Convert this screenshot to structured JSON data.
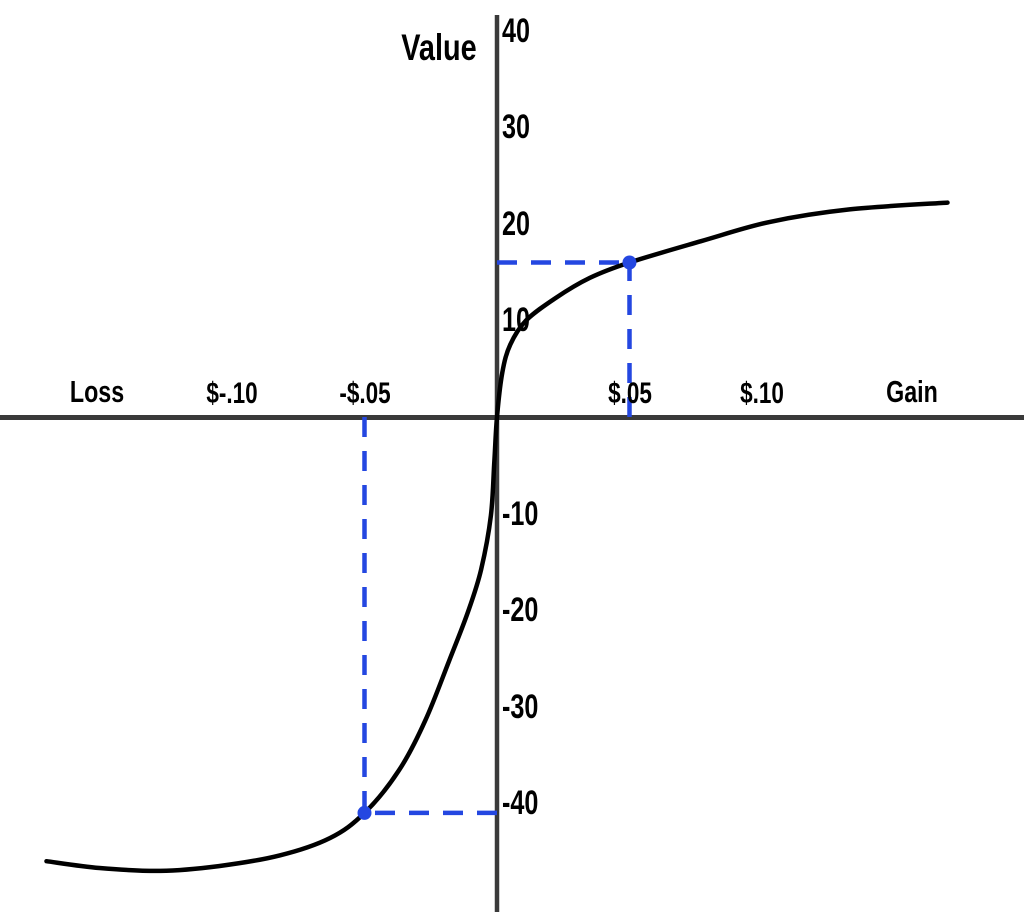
{
  "colors": {
    "background": "#ffffff",
    "curve": "#000000",
    "axis": "#3a3a3a",
    "guide_blue": "#2447e1",
    "label_text": "#000000"
  },
  "chart_data": {
    "type": "line",
    "ylabel": "Value",
    "xlabel_left": "Loss",
    "xlabel_right": "Gain",
    "xlim": [
      -0.19,
      0.2
    ],
    "ylim": [
      -52,
      43
    ],
    "grid": false,
    "legend": false,
    "x_ticks": [
      {
        "value": -0.1,
        "label": "$-.10"
      },
      {
        "value": -0.05,
        "label": "-$.05"
      },
      {
        "value": 0.05,
        "label": "$.05"
      },
      {
        "value": 0.1,
        "label": "$.10"
      }
    ],
    "y_ticks": [
      {
        "value": 40,
        "label": "40"
      },
      {
        "value": 30,
        "label": "30"
      },
      {
        "value": 20,
        "label": "20"
      },
      {
        "value": 10,
        "label": "10"
      },
      {
        "value": -10,
        "label": "-10"
      },
      {
        "value": -20,
        "label": "-20"
      },
      {
        "value": -30,
        "label": "-30"
      },
      {
        "value": -40,
        "label": "-40"
      }
    ],
    "series": [
      {
        "name": "value-function-curve",
        "points": [
          [
            -0.17,
            -46.0
          ],
          [
            -0.15,
            -46.7
          ],
          [
            -0.127,
            -47.0
          ],
          [
            -0.105,
            -46.5
          ],
          [
            -0.082,
            -45.4
          ],
          [
            -0.063,
            -43.6
          ],
          [
            -0.05,
            -41.0
          ],
          [
            -0.037,
            -36.6
          ],
          [
            -0.027,
            -31.4
          ],
          [
            -0.018,
            -25.2
          ],
          [
            -0.011,
            -20.2
          ],
          [
            -0.006,
            -15.8
          ],
          [
            -0.0023,
            -10.2
          ],
          [
            -0.001,
            -4.5
          ],
          [
            0,
            0
          ],
          [
            0.002,
            4.6
          ],
          [
            0.005,
            7.5
          ],
          [
            0.011,
            10.0
          ],
          [
            0.022,
            12.3
          ],
          [
            0.035,
            14.4
          ],
          [
            0.05,
            16.0
          ],
          [
            0.077,
            18.2
          ],
          [
            0.103,
            20.2
          ],
          [
            0.133,
            21.5
          ],
          [
            0.17,
            22.2
          ]
        ]
      }
    ],
    "highlight_points": [
      {
        "name": "gain-example",
        "x": 0.05,
        "value": 16,
        "guides": "dashed-to-both-axes"
      },
      {
        "name": "loss-example",
        "x": -0.05,
        "value": -41,
        "guides": "dashed-to-both-axes"
      }
    ]
  }
}
